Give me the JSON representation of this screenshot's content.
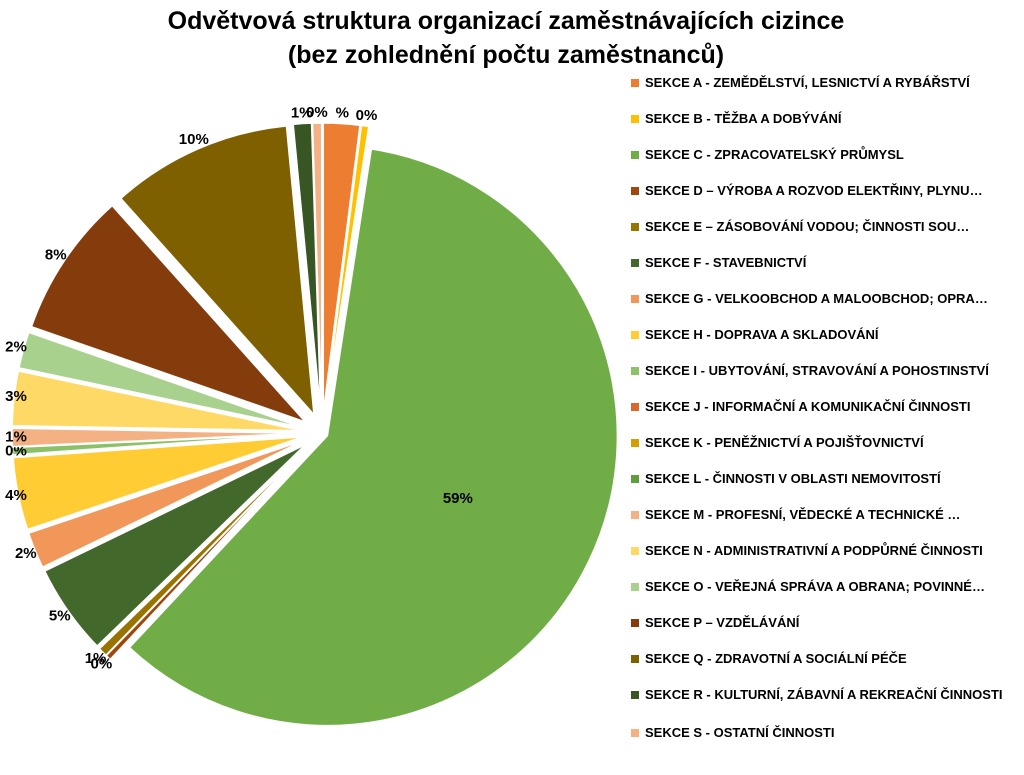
{
  "chart_data": {
    "type": "pie",
    "title": "Odvětvová struktura organizací zaměstnávajících cizince",
    "subtitle": "(bez zohlednění počtu zaměstnanců)",
    "slices": [
      {
        "label": "SEKCE A - ZEMĚDĚLSTVÍ, LESNICTVÍ A RYBÁŘSTVÍ",
        "value": 2,
        "data_label": "%",
        "color": "#ED7D31"
      },
      {
        "label": "SEKCE B - TĚŽBA A DOBÝVÁNÍ",
        "value": 0.4,
        "data_label": "0%",
        "color": "#FFC000"
      },
      {
        "label": "SEKCE C - ZPRACOVATELSKÝ PRŮMYSL",
        "value": 59,
        "data_label": "59%",
        "color": "#70AD47"
      },
      {
        "label": "SEKCE D – VÝROBA A ROZVOD ELEKTŘINY, PLYNU…",
        "value": 0.3,
        "data_label": "0%",
        "color": "#9E480E"
      },
      {
        "label": "SEKCE E – ZÁSOBOVÁNÍ VODOU; ČINNOSTI SOU…",
        "value": 0.5,
        "data_label": "1%",
        "color": "#997300"
      },
      {
        "label": "SEKCE F - STAVEBNICTVÍ",
        "value": 5,
        "data_label": "5%",
        "color": "#43682B"
      },
      {
        "label": "SEKCE G - VELKOOBCHOD A MALOOBCHOD; OPRA…",
        "value": 2,
        "data_label": "2%",
        "color": "#F1975A"
      },
      {
        "label": "SEKCE H - DOPRAVA A SKLADOVÁNÍ",
        "value": 4,
        "data_label": "4%",
        "color": "#FFCD33"
      },
      {
        "label": "SEKCE I - UBYTOVÁNÍ, STRAVOVÁNÍ A POHOSTINSTVÍ",
        "value": 0.4,
        "data_label": "0%",
        "color": "#8CC168"
      },
      {
        "label": "SEKCE J - INFORMAČNÍ A KOMUNIKAČNÍ ČINNOSTI",
        "value": 0,
        "data_label": "",
        "color": "#D9692B"
      },
      {
        "label": "SEKCE K - PENĚŽNICTVÍ A POJIŠŤOVNICTVÍ",
        "value": 0,
        "data_label": "",
        "color": "#D4A000"
      },
      {
        "label": "SEKCE L - ČINNOSTI V OBLASTI NEMOVITOSTÍ",
        "value": 0,
        "data_label": "",
        "color": "#5E9E3F"
      },
      {
        "label": "SEKCE M - PROFESNÍ, VĚDECKÉ A TECHNICKÉ …",
        "value": 1,
        "data_label": "1%",
        "color": "#F4B183"
      },
      {
        "label": "SEKCE N - ADMINISTRATIVNÍ A PODPŮRNÉ ČINNOSTI",
        "value": 3,
        "data_label": "3%",
        "color": "#FFD966"
      },
      {
        "label": "SEKCE O - VEŘEJNÁ SPRÁVA A OBRANA; POVINNÉ…",
        "value": 2,
        "data_label": "2%",
        "color": "#A9D18E"
      },
      {
        "label": "SEKCE P – VZDĚLÁVÁNÍ",
        "value": 8,
        "data_label": "8%",
        "color": "#843C0C"
      },
      {
        "label": "SEKCE Q - ZDRAVOTNÍ A SOCIÁLNÍ PÉČE",
        "value": 10,
        "data_label": "10%",
        "color": "#7F6000"
      },
      {
        "label": "SEKCE R - KULTURNÍ, ZÁBAVNÍ A REKREAČNÍ ČINNOSTI",
        "value": 1,
        "data_label": "1%",
        "color": "#375623"
      },
      {
        "label": "SEKCE S - OSTATNÍ ČINNOSTI",
        "value": 0.5,
        "data_label": "0%",
        "color": "#F4B183"
      }
    ],
    "legend_position": "right"
  }
}
